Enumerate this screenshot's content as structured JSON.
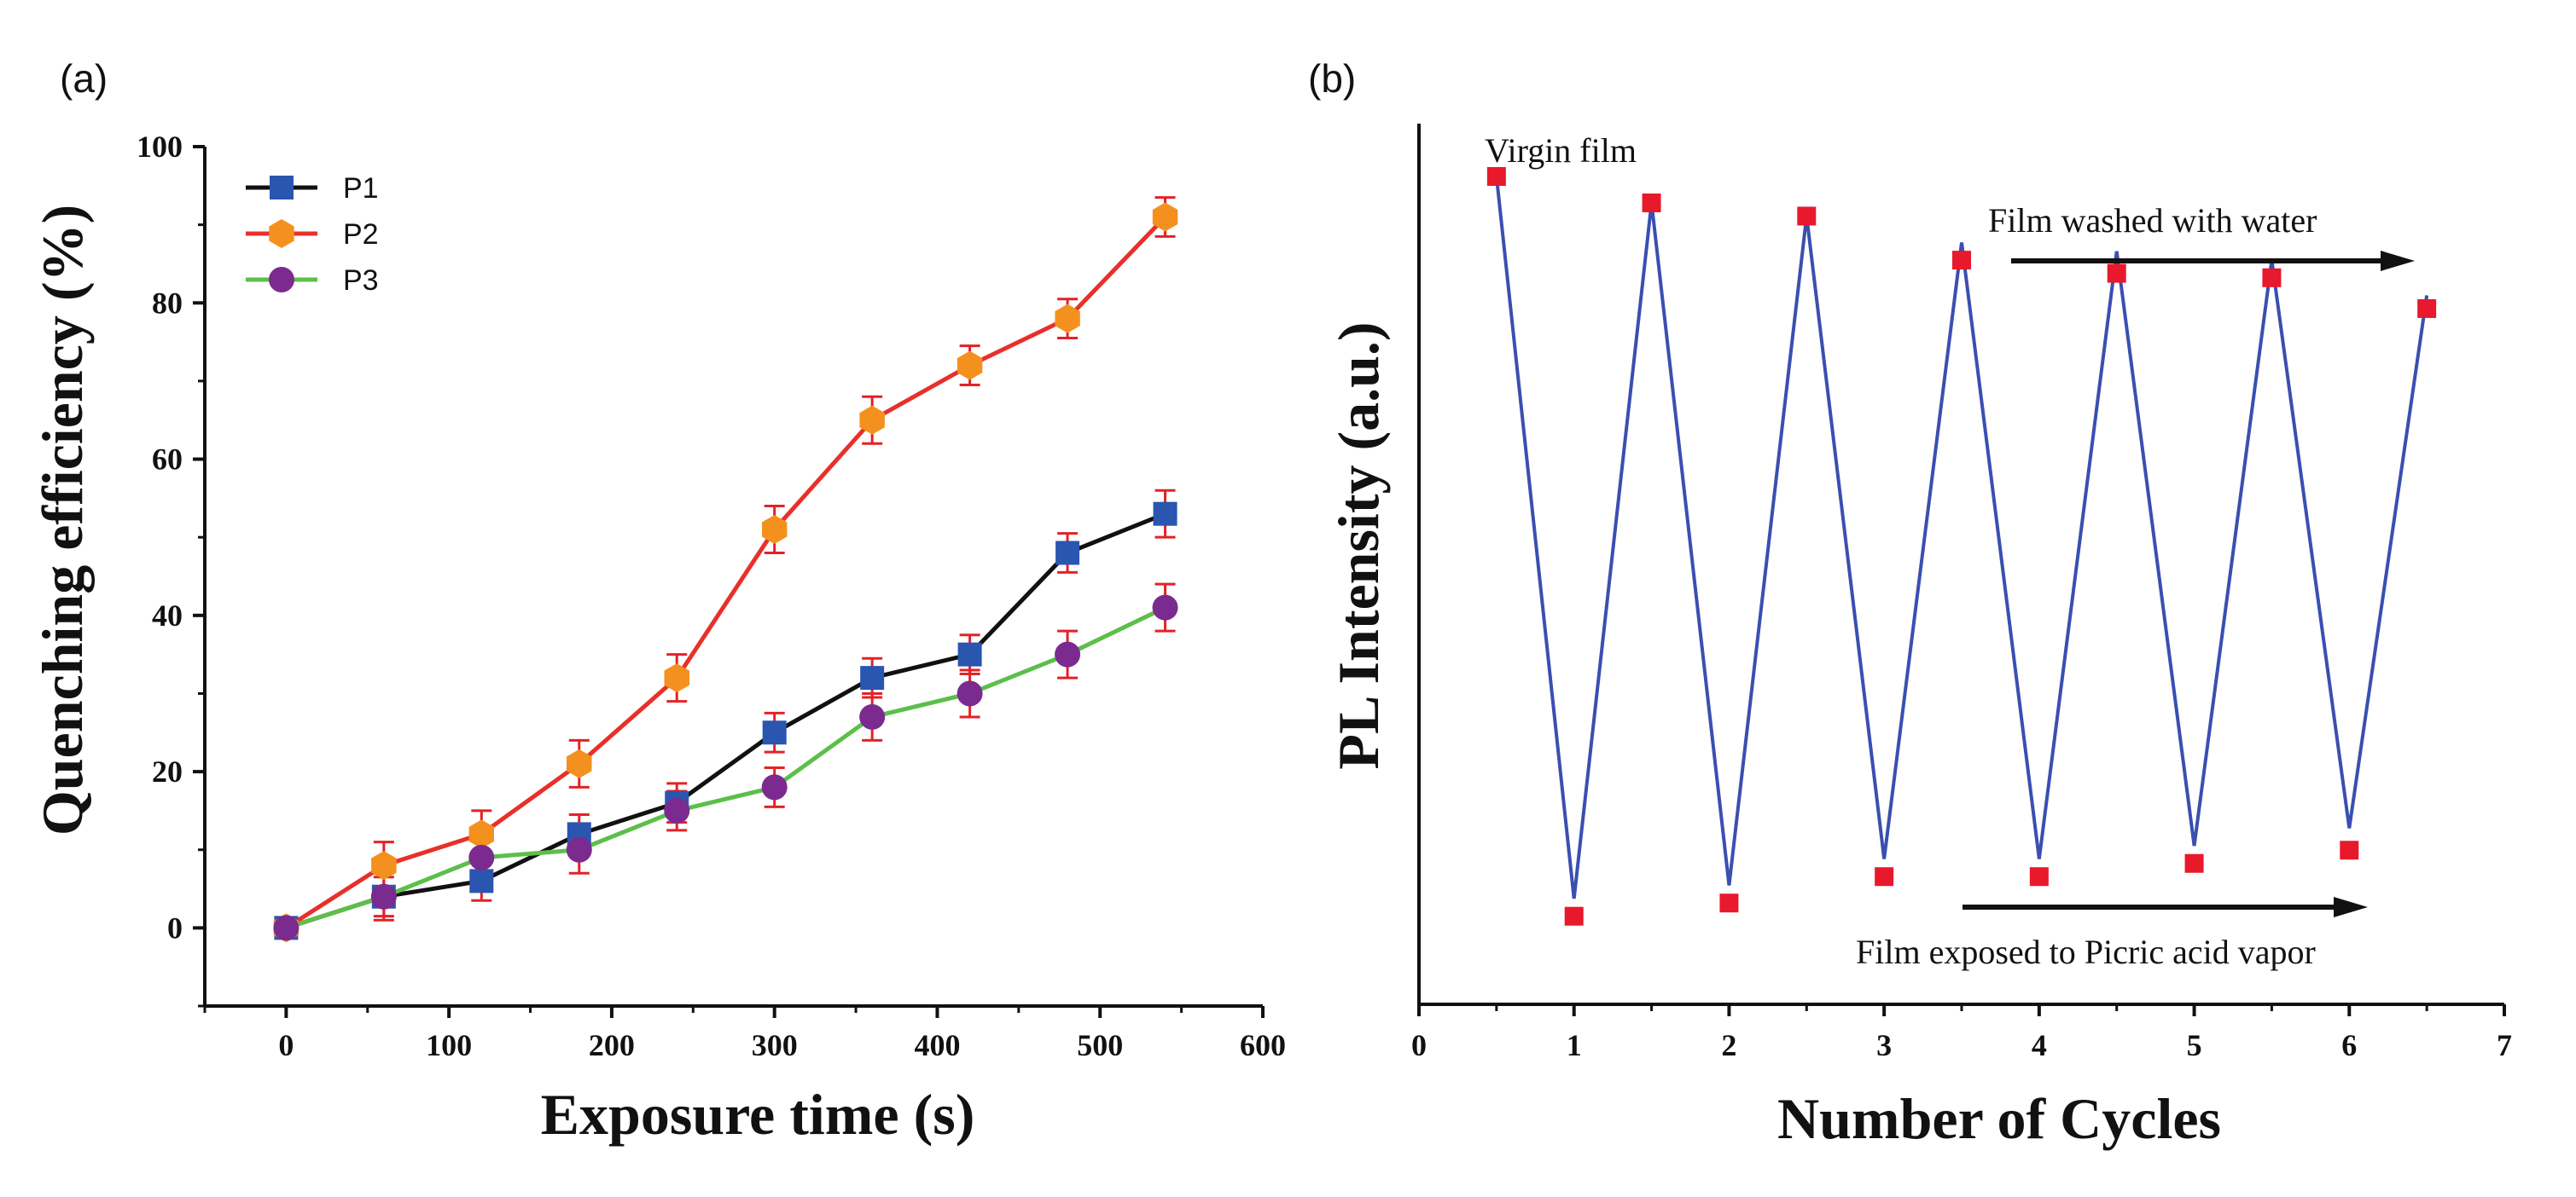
{
  "chart_data": [
    {
      "panel": "(a)",
      "type": "line",
      "title": "",
      "xlabel": "Exposure time (s)",
      "ylabel": "Quenching efficiency (%)",
      "xlim": [
        -50,
        600
      ],
      "ylim": [
        -10,
        100
      ],
      "xticks": [
        0,
        100,
        200,
        300,
        400,
        500,
        600
      ],
      "yticks": [
        0,
        20,
        40,
        60,
        80,
        100
      ],
      "x": [
        0,
        60,
        120,
        180,
        240,
        300,
        360,
        420,
        480,
        540
      ],
      "legend_position": "top-left",
      "series": [
        {
          "name": "P1",
          "line_color": "#111111",
          "marker_color": "#2a56b0",
          "marker": "square",
          "values": [
            0,
            4,
            6,
            12,
            16,
            25,
            32,
            35,
            48,
            53
          ],
          "errors": [
            0,
            2.5,
            2.5,
            2.5,
            2.5,
            2.5,
            2.5,
            2.5,
            2.5,
            3
          ]
        },
        {
          "name": "P2",
          "line_color": "#e8302a",
          "marker_color": "#f4911e",
          "marker": "hexagon",
          "values": [
            0,
            8,
            12,
            21,
            32,
            51,
            65,
            72,
            78,
            91
          ],
          "errors": [
            0,
            3,
            3,
            3,
            3,
            3,
            3,
            2.5,
            2.5,
            2.5
          ]
        },
        {
          "name": "P3",
          "line_color": "#5cbf4a",
          "marker_color": "#7b2b8f",
          "marker": "circle",
          "values": [
            0,
            4,
            9,
            10,
            15,
            18,
            27,
            30,
            35,
            41
          ],
          "errors": [
            0,
            3,
            3,
            3,
            2.5,
            2.5,
            3,
            3,
            3,
            3
          ]
        }
      ]
    },
    {
      "panel": "(b)",
      "type": "line",
      "title": "",
      "xlabel": "Number of Cycles",
      "ylabel": "PL Intensity (a.u.)",
      "xlim": [
        0,
        7
      ],
      "ylim": [
        0,
        100
      ],
      "xticks": [
        0,
        1,
        2,
        3,
        4,
        5,
        6,
        7
      ],
      "y_ticks_labeled": false,
      "line_color": "#3a4fb0",
      "marker_color": "#e8192c",
      "x": [
        0.5,
        1,
        1.5,
        2,
        2.5,
        3,
        3.5,
        4,
        4.5,
        5,
        5.5,
        6,
        6.5
      ],
      "line_values": [
        94,
        12,
        91,
        13.5,
        89.5,
        16.5,
        86.5,
        16.5,
        85.5,
        18,
        84.5,
        20,
        80.5
      ],
      "marker_values": [
        94,
        10,
        91,
        11.5,
        89.5,
        14.5,
        84.5,
        14.5,
        83,
        16,
        82.5,
        17.5,
        79
      ],
      "annotations": [
        {
          "text": "Virgin film"
        },
        {
          "text": "Film washed with water"
        },
        {
          "text": "Film exposed to Picric acid vapor"
        }
      ]
    }
  ]
}
